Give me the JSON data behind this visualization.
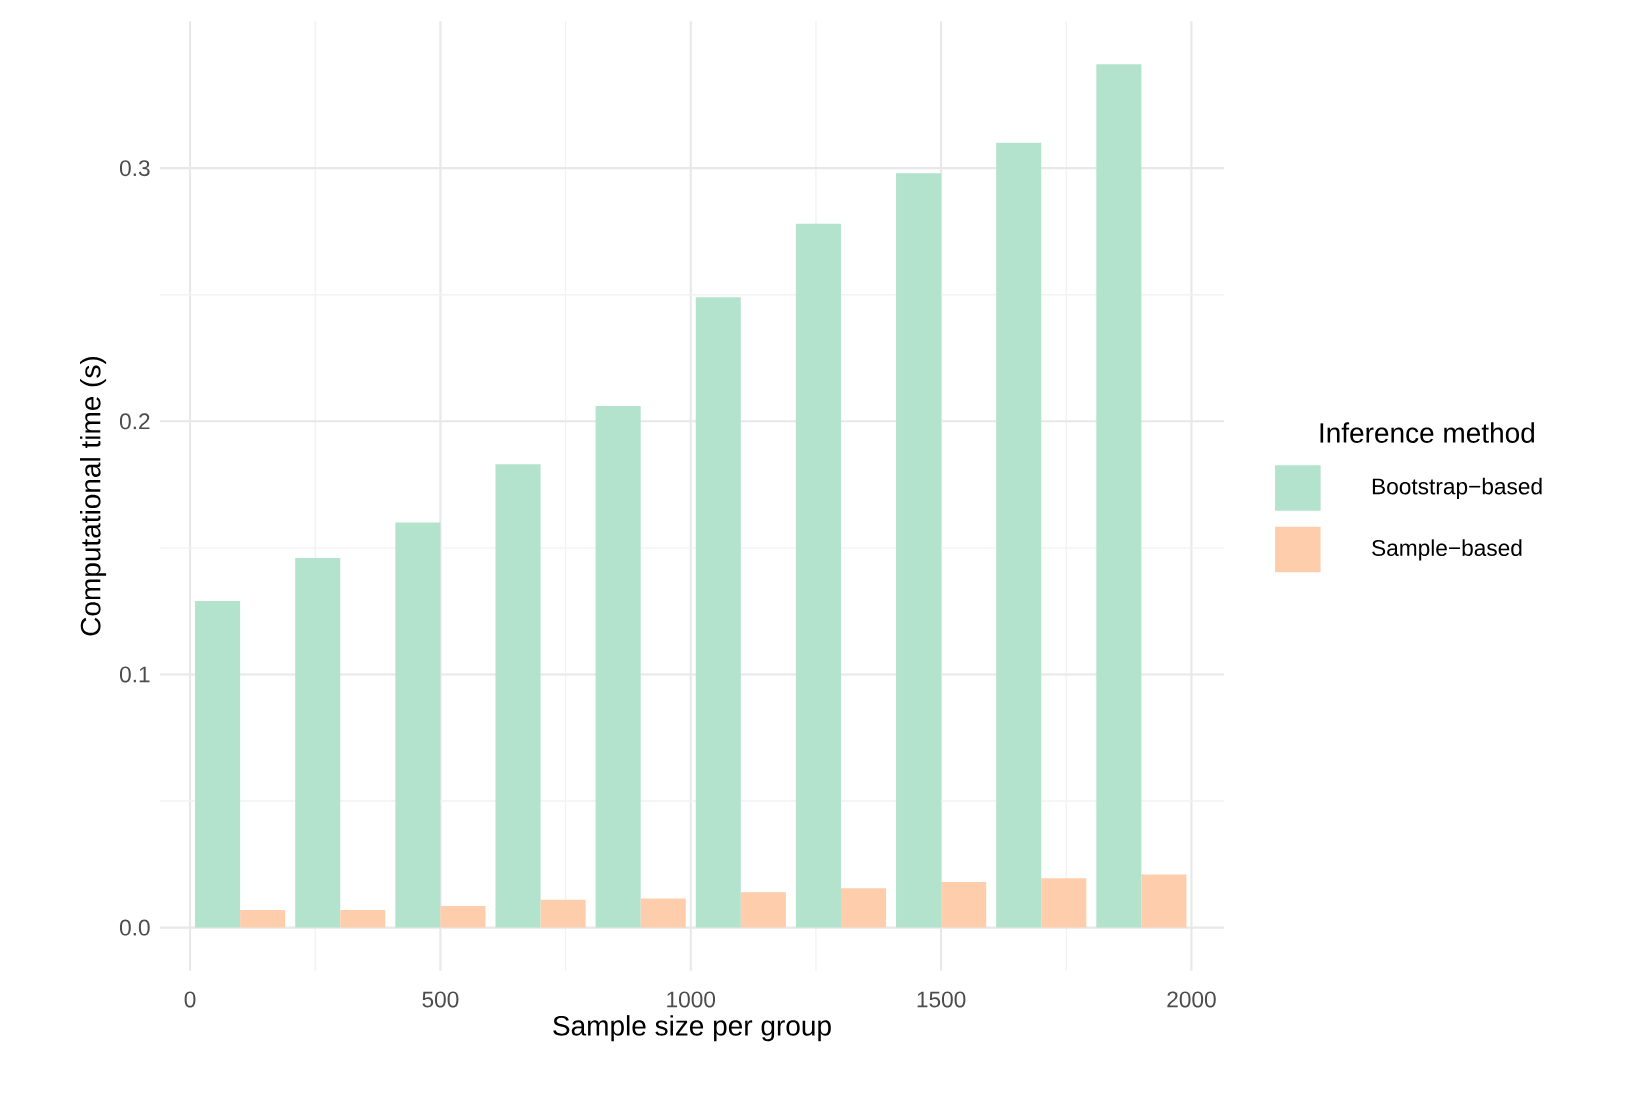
{
  "chart_data": {
    "type": "bar",
    "xlabel": "Sample size per group",
    "ylabel": "Computational time (s)",
    "legend_title": "Inference method",
    "x": [
      100,
      300,
      500,
      700,
      900,
      1100,
      1300,
      1500,
      1700,
      1900
    ],
    "series": [
      {
        "name": "Bootstrap−based",
        "color": "#b3e2cd",
        "values": [
          0.129,
          0.146,
          0.16,
          0.183,
          0.206,
          0.249,
          0.278,
          0.298,
          0.31,
          0.341
        ]
      },
      {
        "name": "Sample−based",
        "color": "#fdcdac",
        "values": [
          0.007,
          0.007,
          0.0085,
          0.011,
          0.0115,
          0.014,
          0.0155,
          0.018,
          0.0195,
          0.021
        ]
      }
    ],
    "xlim": [
      -60,
      2065
    ],
    "ylim": [
      -0.017,
      0.358
    ],
    "xticks": [
      0,
      500,
      1000,
      1500,
      2000
    ],
    "yticks": [
      {
        "value": 0,
        "label": "0.0"
      },
      {
        "value": 0.1,
        "label": "0.1"
      },
      {
        "value": 0.2,
        "label": "0.2"
      },
      {
        "value": 0.3,
        "label": "0.3"
      }
    ],
    "grid": true,
    "legend": "right"
  }
}
